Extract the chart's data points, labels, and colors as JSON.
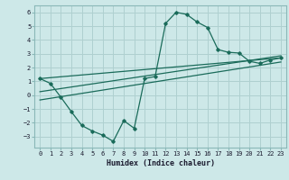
{
  "xlabel": "Humidex (Indice chaleur)",
  "bg_color": "#cde8e8",
  "grid_color": "#afd0d0",
  "line_color": "#1a6b5a",
  "spine_color": "#8ab8b8",
  "xlim": [
    -0.5,
    23.5
  ],
  "ylim": [
    -3.8,
    6.5
  ],
  "yticks": [
    -3,
    -2,
    -1,
    0,
    1,
    2,
    3,
    4,
    5,
    6
  ],
  "xticks": [
    0,
    1,
    2,
    3,
    4,
    5,
    6,
    7,
    8,
    9,
    10,
    11,
    12,
    13,
    14,
    15,
    16,
    17,
    18,
    19,
    20,
    21,
    22,
    23
  ],
  "curve1_x": [
    0,
    1,
    2,
    3,
    4,
    5,
    6,
    7,
    8,
    9,
    10,
    11,
    12,
    13,
    14,
    15,
    16,
    17,
    18,
    19,
    20,
    21,
    22,
    23
  ],
  "curve1_y": [
    1.2,
    0.85,
    -0.15,
    -1.2,
    -2.2,
    -2.6,
    -2.9,
    -3.35,
    -1.85,
    -2.4,
    1.2,
    1.35,
    5.2,
    6.0,
    5.85,
    5.3,
    4.9,
    3.3,
    3.1,
    3.05,
    2.45,
    2.3,
    2.55,
    2.7
  ],
  "curve2_x": [
    0,
    23
  ],
  "curve2_y": [
    1.2,
    2.7
  ],
  "curve3_x": [
    0,
    23
  ],
  "curve3_y": [
    0.25,
    2.85
  ],
  "curve4_x": [
    0,
    23
  ],
  "curve4_y": [
    -0.35,
    2.4
  ]
}
